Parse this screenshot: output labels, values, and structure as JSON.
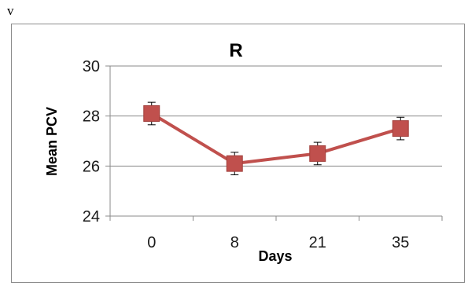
{
  "corner_label": "v",
  "chart_data": {
    "type": "line",
    "title": "R",
    "xlabel": "Days",
    "ylabel": "Mean PCV",
    "categories": [
      "0",
      "8",
      "21",
      "35"
    ],
    "series": [
      {
        "values": [
          28.1,
          26.1,
          26.5,
          27.5
        ],
        "error": [
          0.45,
          0.45,
          0.45,
          0.45
        ],
        "color": "#c0504d"
      }
    ],
    "ylim": [
      24,
      30
    ],
    "yticks": [
      24,
      26,
      28,
      30
    ],
    "grid": true,
    "legend": "none"
  }
}
